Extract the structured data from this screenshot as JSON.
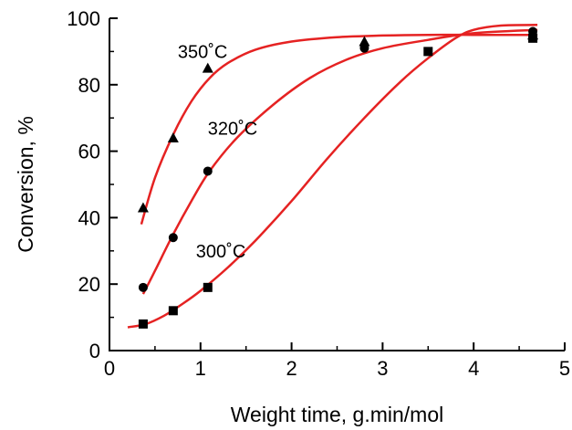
{
  "chart_data": {
    "type": "scatter",
    "xlabel": "Weight time, g.min/mol",
    "ylabel": "Conversion, %",
    "xlim": [
      0,
      5
    ],
    "ylim": [
      0,
      100
    ],
    "x_ticks": [
      "0",
      "1",
      "2",
      "3",
      "4",
      "5"
    ],
    "y_ticks": [
      "0",
      "20",
      "40",
      "60",
      "80",
      "100"
    ],
    "grid": false,
    "fit_color": "#e52222",
    "series": [
      {
        "name": "350˚C",
        "marker": "triangle",
        "points": [
          [
            0.37,
            43
          ],
          [
            0.7,
            64
          ],
          [
            1.08,
            85
          ],
          [
            2.8,
            93
          ],
          [
            4.65,
            95
          ]
        ],
        "fit": [
          [
            0.35,
            38
          ],
          [
            0.5,
            52
          ],
          [
            0.7,
            65
          ],
          [
            0.9,
            75
          ],
          [
            1.1,
            82
          ],
          [
            1.3,
            86.5
          ],
          [
            1.6,
            90.5
          ],
          [
            2.0,
            93
          ],
          [
            2.5,
            94.3
          ],
          [
            3.0,
            94.8
          ],
          [
            3.5,
            95
          ],
          [
            4.0,
            95
          ],
          [
            4.7,
            95
          ]
        ]
      },
      {
        "name": "320˚C",
        "marker": "circle",
        "points": [
          [
            0.37,
            19
          ],
          [
            0.7,
            34
          ],
          [
            1.08,
            54
          ],
          [
            2.8,
            91
          ],
          [
            4.65,
            96
          ]
        ],
        "fit": [
          [
            0.37,
            17
          ],
          [
            0.5,
            24
          ],
          [
            0.7,
            35
          ],
          [
            0.9,
            45
          ],
          [
            1.1,
            54
          ],
          [
            1.4,
            64
          ],
          [
            1.8,
            74
          ],
          [
            2.2,
            82
          ],
          [
            2.6,
            87.5
          ],
          [
            3.0,
            91
          ],
          [
            3.5,
            93.5
          ],
          [
            4.0,
            95.5
          ],
          [
            4.7,
            96.5
          ]
        ]
      },
      {
        "name": "300˚C",
        "marker": "square",
        "points": [
          [
            0.37,
            8
          ],
          [
            0.7,
            12
          ],
          [
            1.08,
            19
          ],
          [
            3.5,
            90
          ],
          [
            4.65,
            94
          ]
        ],
        "fit": [
          [
            0.2,
            7
          ],
          [
            0.4,
            8
          ],
          [
            0.6,
            10.5
          ],
          [
            0.8,
            14
          ],
          [
            1.0,
            18
          ],
          [
            1.3,
            25
          ],
          [
            1.6,
            33
          ],
          [
            2.0,
            45
          ],
          [
            2.4,
            58
          ],
          [
            2.8,
            70
          ],
          [
            3.2,
            81
          ],
          [
            3.5,
            88
          ],
          [
            3.8,
            94
          ],
          [
            4.0,
            96.5
          ],
          [
            4.3,
            97.8
          ],
          [
            4.7,
            98
          ]
        ]
      }
    ]
  }
}
